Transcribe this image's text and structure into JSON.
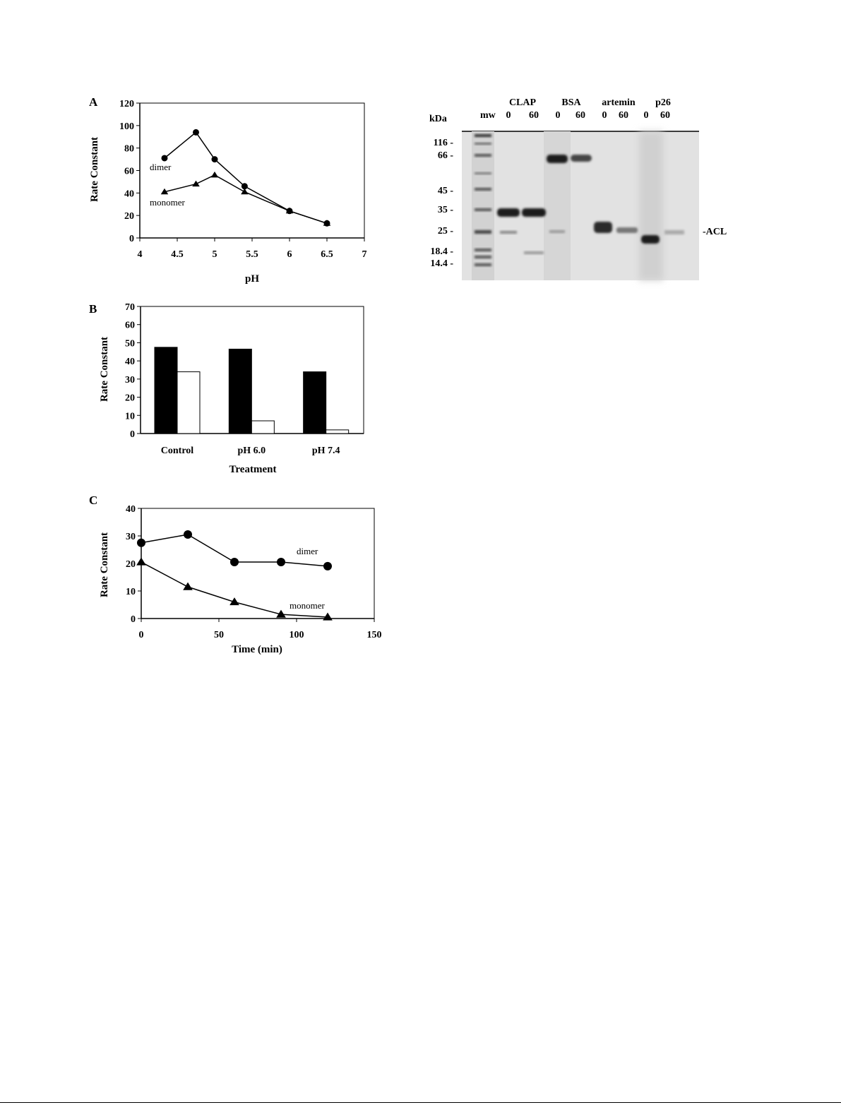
{
  "chart_data": [
    {
      "type": "line",
      "panel_label": "A",
      "xlabel": "pH",
      "ylabel": "Rate Constant",
      "xlim": [
        4,
        7
      ],
      "ylim": [
        0,
        120
      ],
      "xticks": [
        "4",
        "4.5",
        "5",
        "5.5",
        "6",
        "6.5",
        "7"
      ],
      "yticks": [
        "0",
        "20",
        "40",
        "60",
        "80",
        "100",
        "120"
      ],
      "grid": false,
      "series": [
        {
          "name": "dimer",
          "marker": "circle",
          "x": [
            4.33,
            4.75,
            5.0,
            5.4,
            6.0,
            6.5
          ],
          "y": [
            71,
            94,
            70,
            46,
            24,
            13
          ]
        },
        {
          "name": "monomer",
          "marker": "triangle",
          "x": [
            4.33,
            4.75,
            5.0,
            5.4,
            6.0,
            6.5
          ],
          "y": [
            41,
            48,
            56,
            41,
            24,
            13
          ]
        }
      ]
    },
    {
      "type": "bar",
      "panel_label": "B",
      "xlabel": "Treatment",
      "ylabel": "Rate Constant",
      "categories": [
        "Control",
        "pH 6.0",
        "pH 7.4"
      ],
      "ylim": [
        0,
        70
      ],
      "yticks": [
        "0",
        "10",
        "20",
        "30",
        "40",
        "50",
        "60",
        "70"
      ],
      "grid": false,
      "series": [
        {
          "fill": "#000000",
          "values": [
            47.5,
            46.5,
            34
          ]
        },
        {
          "fill": "#ffffff",
          "values": [
            34,
            7,
            2
          ]
        }
      ]
    },
    {
      "type": "line",
      "panel_label": "C",
      "xlabel": "Time (min)",
      "ylabel": "Rate Constant",
      "xlim": [
        0,
        150
      ],
      "ylim": [
        0,
        40
      ],
      "xticks": [
        "0",
        "50",
        "100",
        "150"
      ],
      "yticks": [
        "0",
        "10",
        "20",
        "30",
        "40"
      ],
      "grid": false,
      "series": [
        {
          "name": "dimer",
          "marker": "circle",
          "x": [
            0,
            30,
            60,
            90,
            120
          ],
          "y": [
            27.5,
            30.5,
            20.5,
            20.5,
            19
          ]
        },
        {
          "name": "monomer",
          "marker": "triangle",
          "x": [
            0,
            30,
            60,
            90,
            120
          ],
          "y": [
            20.5,
            11.5,
            6,
            1.5,
            0.5
          ]
        }
      ]
    }
  ],
  "gel": {
    "unit_label": "kDa",
    "mw_lane_label": "mw",
    "groups": [
      {
        "name": "CLAP",
        "times": [
          "0",
          "60"
        ]
      },
      {
        "name": "BSA",
        "times": [
          "0",
          "60"
        ]
      },
      {
        "name": "artemin",
        "times": [
          "0",
          "60"
        ]
      },
      {
        "name": "p26",
        "times": [
          "0",
          "60"
        ]
      }
    ],
    "markers": [
      "116 -",
      "66 -",
      "45 -",
      "35 -",
      "25 -",
      "18.4 -",
      "14.4 -"
    ],
    "band_label": "-ACL"
  }
}
